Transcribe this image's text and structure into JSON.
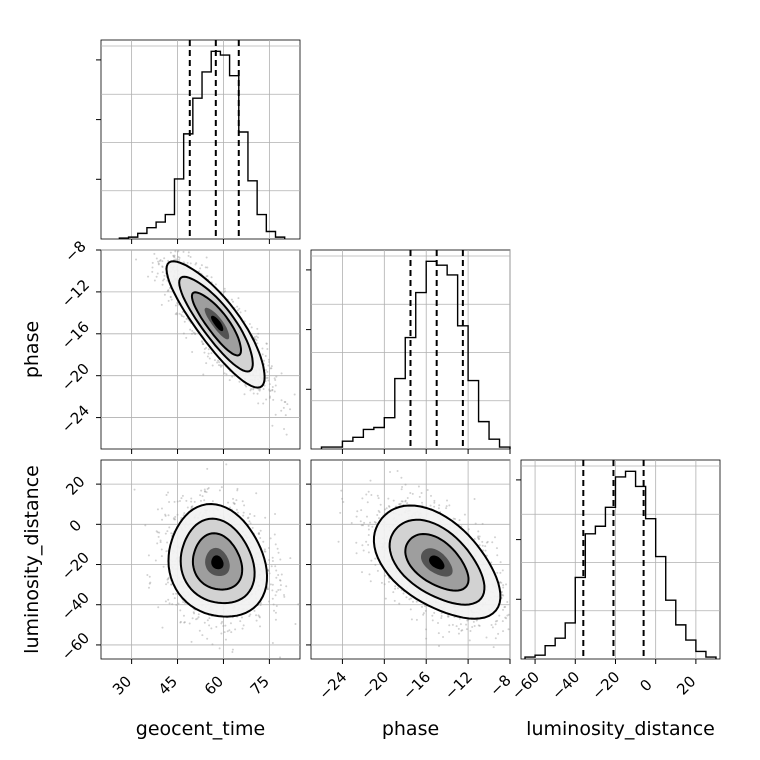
{
  "chart_data": {
    "type": "corner",
    "parameters": [
      "geocent_time",
      "phase",
      "luminosity_distance"
    ],
    "ranges": {
      "geocent_time": [
        20,
        85
      ],
      "phase": [
        -27,
        -8
      ],
      "luminosity_distance": [
        -67,
        32
      ]
    },
    "ticks": {
      "geocent_time": [
        30,
        45,
        60,
        75
      ],
      "phase": [
        -24,
        -20,
        -16,
        -12,
        -8
      ],
      "luminosity_distance": [
        -60,
        -40,
        -20,
        0,
        20
      ]
    },
    "quantiles": {
      "geocent_time": [
        49,
        57.5,
        65
      ],
      "phase": [
        -17.5,
        -15,
        -12.5
      ],
      "luminosity_distance": [
        -36,
        -21,
        -6
      ]
    },
    "hist1d": {
      "geocent_time": {
        "edges": [
          26,
          29,
          32,
          35,
          38,
          41,
          44,
          47,
          50,
          53,
          56,
          59,
          62,
          65,
          68,
          71,
          74,
          77,
          80
        ],
        "counts": [
          0.5,
          1,
          3,
          6,
          9,
          13,
          32,
          56,
          75,
          89,
          100,
          98,
          87,
          57,
          31,
          13,
          4,
          1
        ]
      },
      "phase": {
        "edges": [
          -26,
          -25,
          -24,
          -23,
          -22,
          -21,
          -20,
          -19,
          -18,
          -17,
          -16,
          -15,
          -14,
          -13,
          -12,
          -11,
          -10,
          -9,
          -8
        ],
        "counts": [
          1,
          1,
          4,
          6,
          10,
          11,
          16,
          36,
          57,
          80,
          96,
          94,
          89,
          63,
          35,
          14,
          5,
          1
        ]
      },
      "luminosity_distance": {
        "edges": [
          -65,
          -60,
          -55,
          -50,
          -45,
          -40,
          -35,
          -30,
          -25,
          -20,
          -15,
          -10,
          -5,
          0,
          5,
          10,
          15,
          20,
          25,
          30
        ],
        "counts": [
          1,
          2,
          7,
          11,
          19,
          43,
          66,
          70,
          80,
          96,
          99,
          91,
          74,
          54,
          31,
          18,
          10,
          4,
          1
        ]
      }
    },
    "scatter_samples": 1800,
    "correlations": {
      "geocent_time|phase": -0.85,
      "geocent_time|luminosity_distance": -0.15,
      "phase|luminosity_distance": -0.5
    },
    "centers": {
      "geocent_time": 58,
      "phase": -15,
      "luminosity_distance": -19
    },
    "stds": {
      "geocent_time": 8,
      "phase": 3,
      "luminosity_distance": 14
    },
    "grid": true
  }
}
